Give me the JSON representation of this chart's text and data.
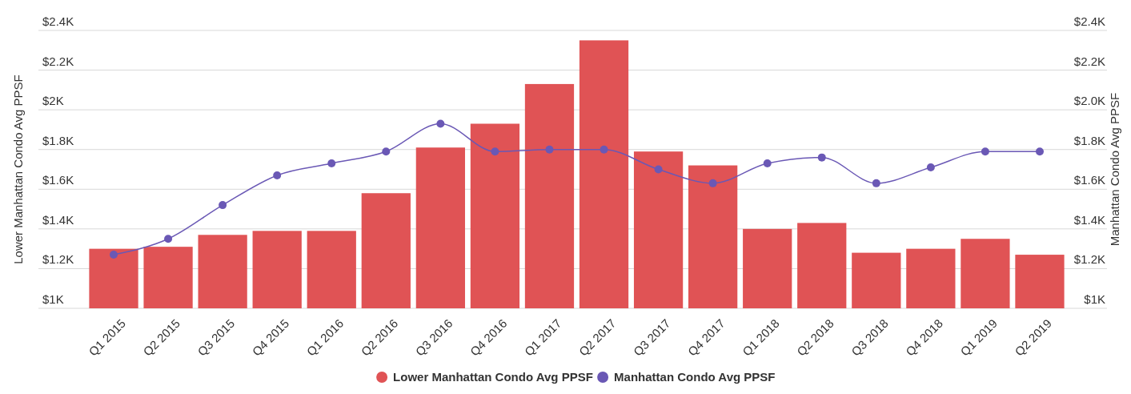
{
  "chart_data": {
    "type": "bar",
    "ylabel": "Lower Manhattan Condo Avg PPSF",
    "y2label": "Manhattan Condo Avg PPSF",
    "categories": [
      "Q1 2015",
      "Q2 2015",
      "Q3 2015",
      "Q4 2015",
      "Q1 2016",
      "Q2 2016",
      "Q3 2016",
      "Q4 2016",
      "Q1 2017",
      "Q2 2017",
      "Q3 2017",
      "Q4 2017",
      "Q1 2018",
      "Q2 2018",
      "Q3 2018",
      "Q4 2018",
      "Q1 2019",
      "Q2 2019"
    ],
    "series": [
      {
        "name": "Lower Manhattan Condo Avg PPSF",
        "color": "#e05355",
        "values": [
          1300,
          1310,
          1370,
          1390,
          1390,
          1580,
          1810,
          1930,
          2130,
          2350,
          1790,
          1720,
          1400,
          1430,
          1280,
          1300,
          1350,
          1270
        ]
      },
      {
        "name": "Manhattan Condo Avg PPSF",
        "type": "line",
        "color": "#6a58b5",
        "values": [
          1270,
          1350,
          1520,
          1670,
          1730,
          1790,
          1930,
          1790,
          1800,
          1800,
          1700,
          1630,
          1730,
          1760,
          1630,
          1710,
          1790,
          1790
        ]
      }
    ],
    "ylim": [
      1000,
      2400
    ],
    "yticks": [
      {
        "value": 1000,
        "label": "$1K"
      },
      {
        "value": 1200,
        "label": "$1.2K"
      },
      {
        "value": 1400,
        "label": "$1.4K"
      },
      {
        "value": 1600,
        "label": "$1.6K"
      },
      {
        "value": 1800,
        "label": "$1.8K"
      },
      {
        "value": 2000,
        "label": "$2K"
      },
      {
        "value": 2200,
        "label": "$2.2K"
      },
      {
        "value": 2400,
        "label": "$2.4K"
      }
    ],
    "y2lim": [
      1000,
      2400
    ],
    "y2ticks": [
      {
        "value": 1000,
        "label": "$1K"
      },
      {
        "value": 1200,
        "label": "$1.2K"
      },
      {
        "value": 1400,
        "label": "$1.4K"
      },
      {
        "value": 1600,
        "label": "$1.6K"
      },
      {
        "value": 1800,
        "label": "$1.8K"
      },
      {
        "value": 2000,
        "label": "$2.0K"
      },
      {
        "value": 2200,
        "label": "$2.2K"
      },
      {
        "value": 2400,
        "label": "$2.4K"
      }
    ],
    "grid": "y",
    "legend": "bottom",
    "marker": "circle",
    "line_style": "solid"
  }
}
